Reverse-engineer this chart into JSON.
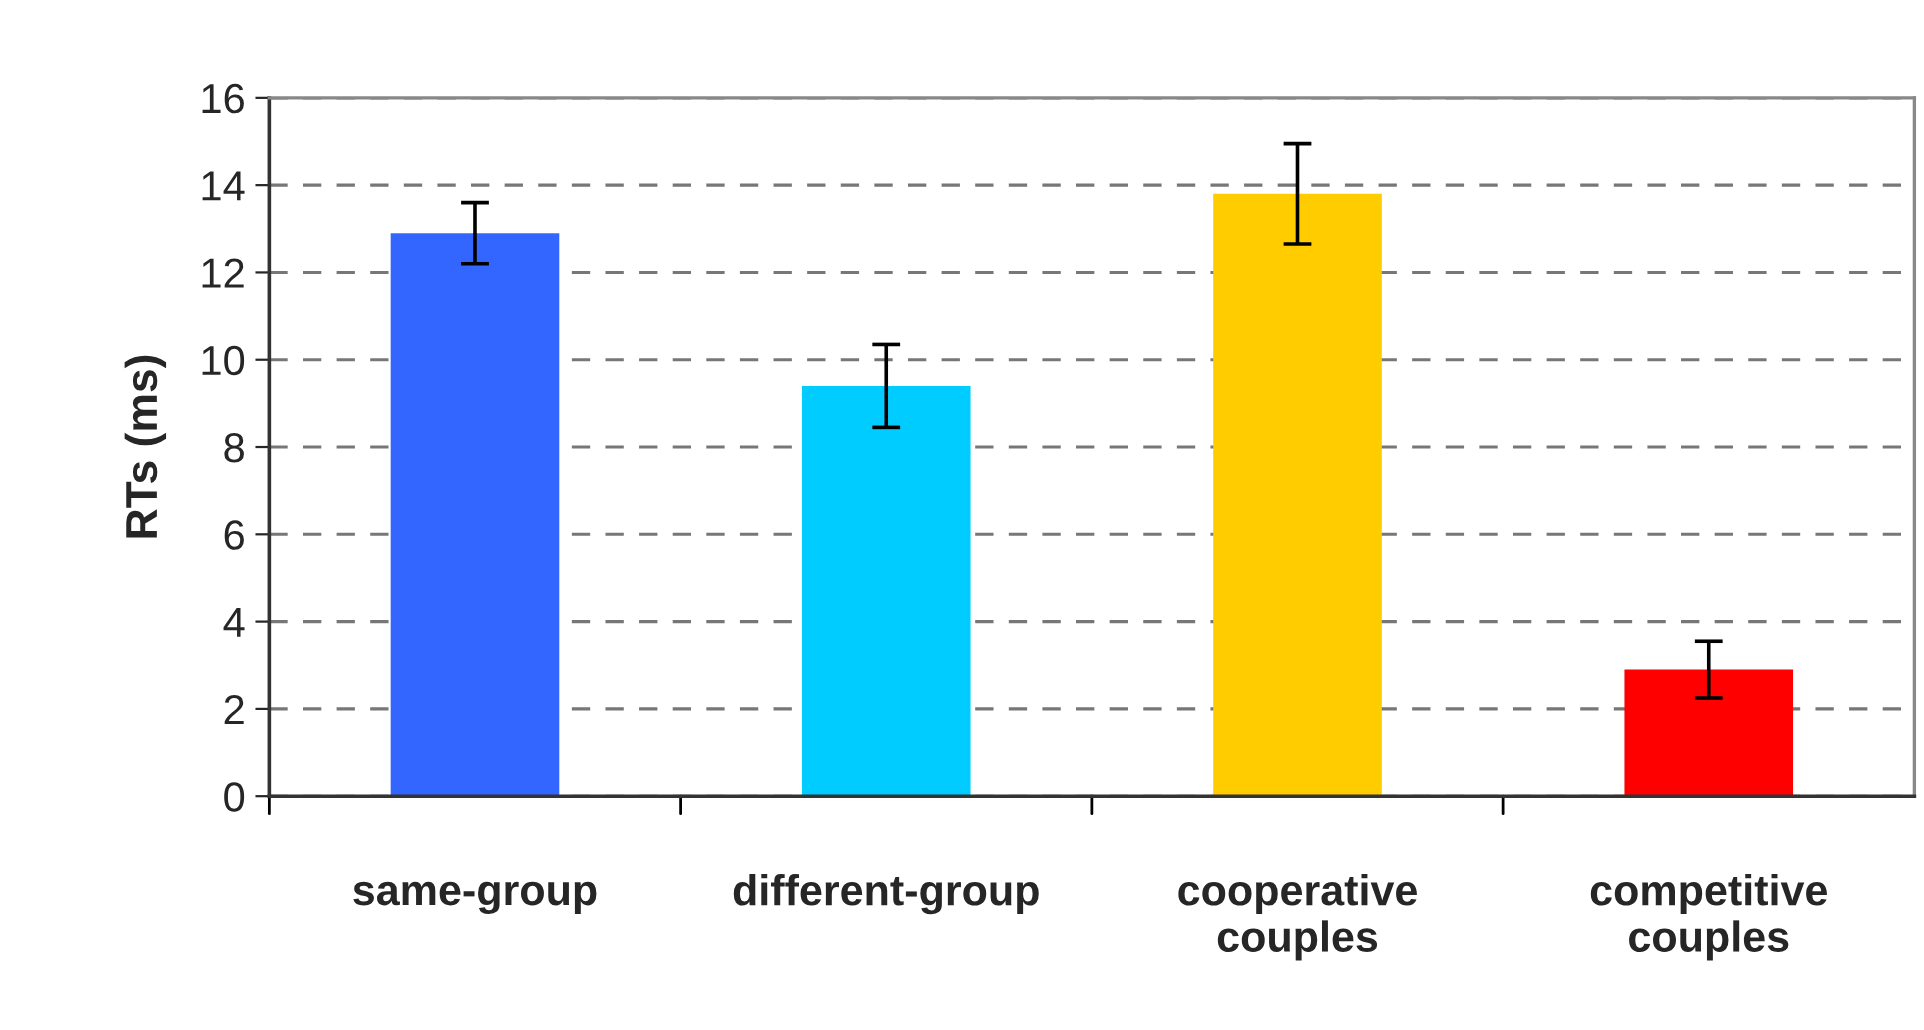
{
  "chart_data": {
    "type": "bar",
    "ylabel": "RTs (ms)",
    "categories": [
      "same-group",
      "different-group",
      "cooperative couples",
      "competitive couples"
    ],
    "values": [
      12.9,
      9.4,
      13.8,
      2.9
    ],
    "errors": [
      0.7,
      0.95,
      1.15,
      0.65
    ],
    "colors": [
      "#3366ff",
      "#00ccff",
      "#ffcc00",
      "#ff0000"
    ],
    "ylim": [
      0,
      16
    ],
    "yticks": [
      0,
      2,
      4,
      6,
      8,
      10,
      12,
      14,
      16
    ],
    "grid": "y"
  }
}
